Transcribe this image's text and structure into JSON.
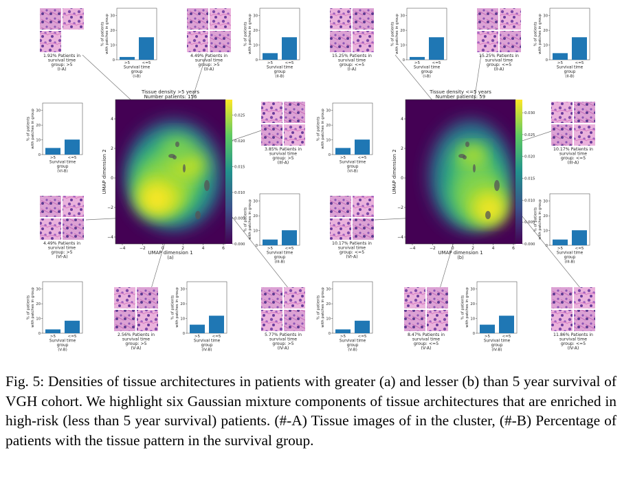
{
  "figure": {
    "panels": [
      {
        "id": "a",
        "title_line1": "Tissue density >5 years",
        "title_line2": "Number patients: 156",
        "xlabel": "UMAP dimension 1",
        "ylabel": "UMAP dimension 2",
        "sub_label": "(a)",
        "x_ticks": [
          "−4",
          "−2",
          "0",
          "2",
          "4",
          "6"
        ],
        "y_ticks": [
          "4",
          "2",
          "0",
          "−2",
          "−4"
        ],
        "colorbar_ticks": [
          "0.025",
          "0.020",
          "0.015",
          "0.010",
          "0.005",
          "0.000"
        ],
        "image_captions": [
          {
            "pct": "1.92% Patients in",
            "l2": "survival time",
            "l3": "group: >5",
            "tag": "(I-A)"
          },
          {
            "pct": "4.49% Patients in",
            "l2": "survival time",
            "l3": "group: >5",
            "tag": "(II-A)"
          },
          {
            "pct": "3.85% Patients in",
            "l2": "survival time",
            "l3": "group: >5",
            "tag": "(III-A)"
          },
          {
            "pct": "4.49% Patients in",
            "l2": "survival time",
            "l3": "group: >5",
            "tag": "(VI-A)"
          },
          {
            "pct": "2.56% Patients in",
            "l2": "survival time",
            "l3": "group: >5",
            "tag": "(V-A)"
          },
          {
            "pct": "5.77% Patients in",
            "l2": "survival time",
            "l3": "group: >5",
            "tag": "(IV-A)"
          }
        ],
        "bar_tags": [
          "(I-B)",
          "(II-B)",
          "(III-B)",
          "(VI-B)",
          "(V-B)",
          "(IV-B)"
        ]
      },
      {
        "id": "b",
        "title_line1": "Tissue density <=5 years",
        "title_line2": "Number patients: 59",
        "xlabel": "UMAP dimension 1",
        "ylabel": "UMAP dimension 2",
        "sub_label": "(b)",
        "x_ticks": [
          "−4",
          "−2",
          "0",
          "2",
          "4",
          "6"
        ],
        "y_ticks": [
          "4",
          "2",
          "0",
          "−2",
          "−4"
        ],
        "colorbar_ticks": [
          "0.030",
          "0.025",
          "0.020",
          "0.015",
          "0.010",
          "0.005",
          "0.000"
        ],
        "image_captions": [
          {
            "pct": "15.25% Patients in",
            "l2": "survival time",
            "l3": "group: <=5",
            "tag": "(I-A)"
          },
          {
            "pct": "15.25% Patients in",
            "l2": "survival time",
            "l3": "group: <=5",
            "tag": "(II-A)"
          },
          {
            "pct": "10.17% Patients in",
            "l2": "survival time",
            "l3": "group: <=5",
            "tag": "(III-A)"
          },
          {
            "pct": "10.17% Patients in",
            "l2": "survival time",
            "l3": "group: <=5",
            "tag": "(VI-A)"
          },
          {
            "pct": "8.47% Patients in",
            "l2": "survival time",
            "l3": "group: <=5",
            "tag": "(V-A)"
          },
          {
            "pct": "11.86% Patients in",
            "l2": "survival time",
            "l3": "group: <=5",
            "tag": "(IV-A)"
          }
        ],
        "bar_tags": [
          "(I-B)",
          "(II-B)",
          "(III-B)",
          "(VI-B)",
          "(V-B)",
          "(IV-B)"
        ]
      }
    ],
    "bar_common": {
      "ylabel_line1": "% of patients",
      "ylabel_line2": "with patches in group",
      "y_ticks": [
        "30",
        "20",
        "10",
        "0"
      ],
      "categories": [
        ">5",
        "<=5"
      ],
      "xlabel_line1": "Survival time",
      "xlabel_line2": "group"
    }
  },
  "chart_data": [
    {
      "type": "bar",
      "panel": "a",
      "tag": "(I-B)",
      "categories": [
        ">5",
        "<=5"
      ],
      "values": [
        1.9,
        15.3
      ],
      "ylim": [
        0,
        35
      ]
    },
    {
      "type": "bar",
      "panel": "a",
      "tag": "(II-B)",
      "categories": [
        ">5",
        "<=5"
      ],
      "values": [
        4.5,
        15.3
      ],
      "ylim": [
        0,
        35
      ]
    },
    {
      "type": "bar",
      "panel": "a",
      "tag": "(III-B)",
      "categories": [
        ">5",
        "<=5"
      ],
      "values": [
        3.9,
        10.2
      ],
      "ylim": [
        0,
        35
      ]
    },
    {
      "type": "bar",
      "panel": "a",
      "tag": "(VI-B)",
      "categories": [
        ">5",
        "<=5"
      ],
      "values": [
        4.5,
        10.2
      ],
      "ylim": [
        0,
        35
      ]
    },
    {
      "type": "bar",
      "panel": "a",
      "tag": "(V-B)",
      "categories": [
        ">5",
        "<=5"
      ],
      "values": [
        2.6,
        8.5
      ],
      "ylim": [
        0,
        35
      ]
    },
    {
      "type": "bar",
      "panel": "a",
      "tag": "(IV-B)",
      "categories": [
        ">5",
        "<=5"
      ],
      "values": [
        5.8,
        11.9
      ],
      "ylim": [
        0,
        35
      ]
    },
    {
      "type": "bar",
      "panel": "b",
      "tag": "(I-B)",
      "categories": [
        ">5",
        "<=5"
      ],
      "values": [
        1.9,
        15.3
      ],
      "ylim": [
        0,
        35
      ]
    },
    {
      "type": "bar",
      "panel": "b",
      "tag": "(II-B)",
      "categories": [
        ">5",
        "<=5"
      ],
      "values": [
        4.5,
        15.3
      ],
      "ylim": [
        0,
        35
      ]
    },
    {
      "type": "bar",
      "panel": "b",
      "tag": "(III-B)",
      "categories": [
        ">5",
        "<=5"
      ],
      "values": [
        3.9,
        10.2
      ],
      "ylim": [
        0,
        35
      ]
    },
    {
      "type": "bar",
      "panel": "b",
      "tag": "(VI-B)",
      "categories": [
        ">5",
        "<=5"
      ],
      "values": [
        4.5,
        10.2
      ],
      "ylim": [
        0,
        35
      ]
    },
    {
      "type": "bar",
      "panel": "b",
      "tag": "(V-B)",
      "categories": [
        ">5",
        "<=5"
      ],
      "values": [
        2.6,
        8.5
      ],
      "ylim": [
        0,
        35
      ]
    },
    {
      "type": "bar",
      "panel": "b",
      "tag": "(IV-B)",
      "categories": [
        ">5",
        "<=5"
      ],
      "values": [
        5.8,
        11.9
      ],
      "ylim": [
        0,
        35
      ]
    }
  ],
  "colors": {
    "bar": "#1f77b4",
    "tissue_pink": "#e9a6d6",
    "tissue_purple": "#6a3c9c",
    "viridis_dark": "#440154",
    "viridis_yellow": "#fde725"
  },
  "caption": {
    "label": "Fig. 5:",
    "text": "Densities of tissue architectures in patients with greater (a) and lesser (b) than 5 year survival of VGH cohort. We highlight six Gaussian mixture components of tissue architectures that are enriched in high-risk (less than 5 year survival) patients. (#-A) Tissue images of in the cluster, (#-B) Percentage of patients with the tissue pattern in the survival group."
  }
}
